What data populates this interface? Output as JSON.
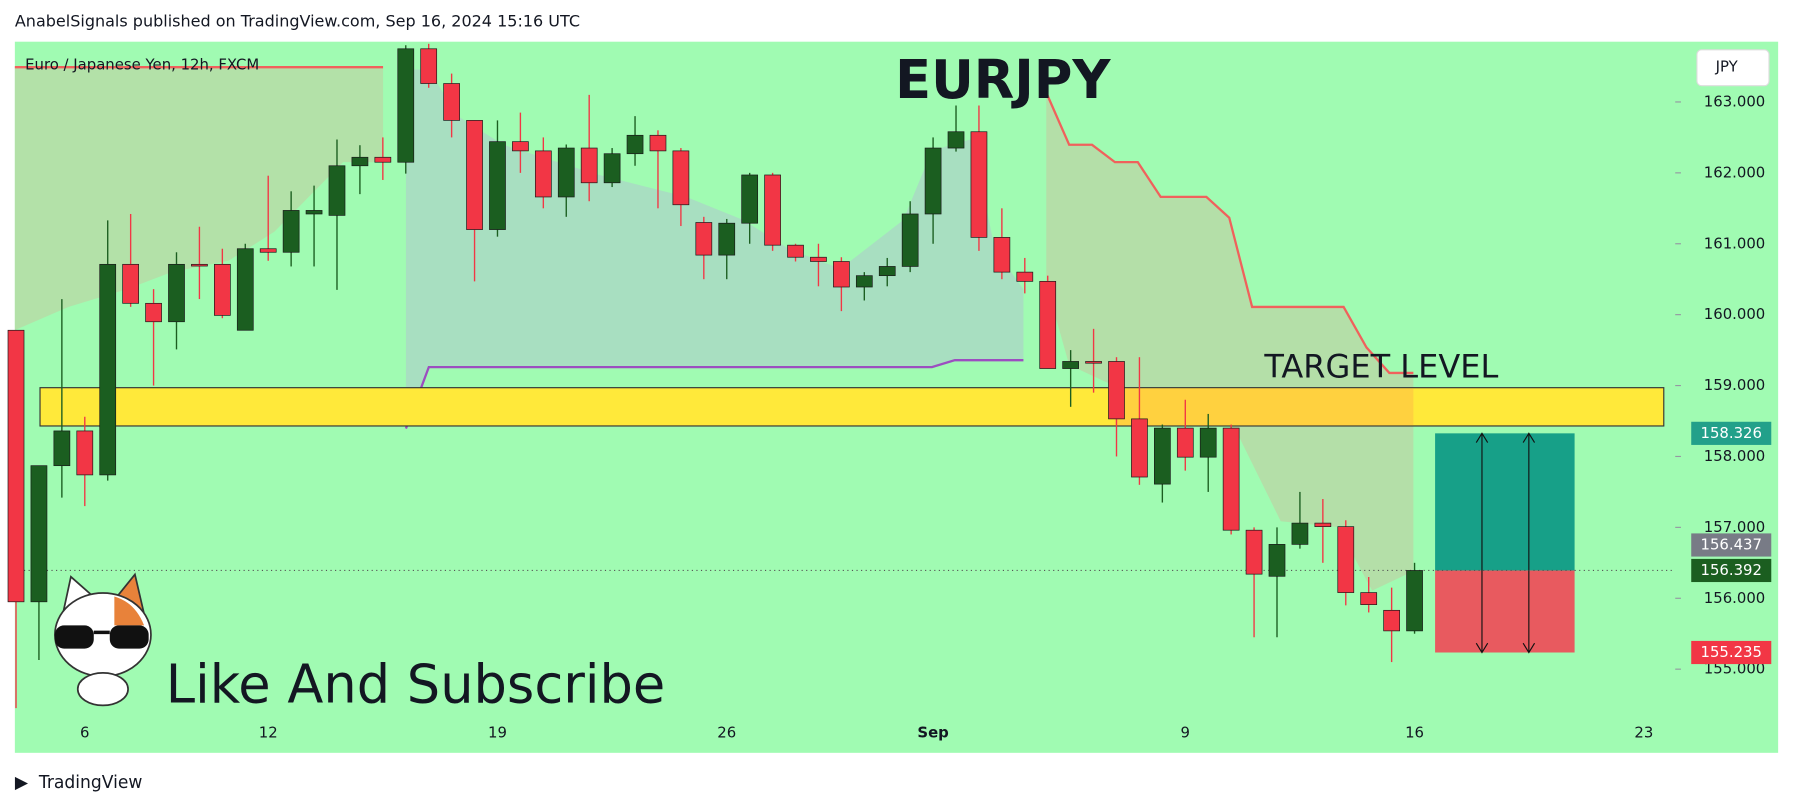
{
  "chart_data": {
    "type": "candlestick",
    "header": "AnabelSignals published on TradingView.com, Sep 16, 2024 15:16 UTC",
    "symbol_label": "Euro / Japanese Yen, 12h, FXCM",
    "title": "EURJPY",
    "currency": "JPY",
    "annotation": "Like And Subscribe",
    "watermark": "TradingView",
    "target_zone": {
      "label": "TARGET LEVEL",
      "range": [
        158.43,
        158.97
      ],
      "color": "#ffe93a"
    },
    "up_color": "#1b5e20",
    "down_color": "#f23645",
    "categories": [
      null,
      null,
      null,
      "6",
      null,
      null,
      null,
      null,
      null,
      null,
      null,
      "12",
      null,
      null,
      null,
      null,
      null,
      null,
      null,
      null,
      null,
      "19",
      null,
      null,
      null,
      null,
      null,
      null,
      null,
      null,
      null,
      "26",
      null,
      null,
      null,
      null,
      null,
      null,
      null,
      null,
      "Sep",
      null,
      null,
      null,
      null,
      null,
      null,
      null,
      null,
      null,
      null,
      "9",
      null,
      null,
      null,
      null,
      null,
      null,
      null,
      null,
      null,
      "16",
      null,
      null,
      null,
      null,
      null,
      null,
      null,
      null,
      null,
      "23"
    ],
    "open": [
      159.78,
      155.95,
      157.87,
      158.36,
      157.74,
      160.71,
      160.16,
      159.9,
      160.71,
      160.71,
      159.78,
      160.93,
      160.88,
      161.42,
      161.4,
      162.1,
      162.22,
      162.15,
      163.75,
      163.26,
      162.74,
      161.2,
      162.44,
      162.31,
      161.66,
      162.35,
      161.86,
      162.27,
      162.53,
      162.31,
      161.3,
      160.84,
      161.29,
      161.97,
      160.98,
      160.81,
      160.75,
      160.39,
      160.55,
      160.68,
      161.42,
      162.35,
      162.58,
      161.09,
      160.6,
      160.47,
      159.24,
      159.34,
      159.34,
      158.53,
      157.61,
      158.4,
      157.99,
      158.4,
      156.96,
      156.31,
      156.76,
      157.06,
      157.01,
      156.08,
      155.83,
      155.54,
      null,
      null,
      null,
      null,
      null,
      null,
      null,
      null,
      null,
      null
    ],
    "high": [
      159.78,
      157.87,
      160.22,
      158.56,
      161.33,
      161.42,
      160.36,
      160.88,
      161.24,
      160.93,
      161.0,
      161.96,
      161.74,
      161.82,
      162.47,
      162.39,
      162.5,
      163.8,
      163.82,
      163.4,
      162.74,
      162.74,
      162.85,
      162.5,
      162.4,
      163.1,
      162.35,
      162.8,
      162.6,
      162.35,
      161.38,
      161.35,
      162.0,
      162.0,
      161.0,
      161.0,
      160.81,
      160.6,
      160.8,
      161.6,
      162.5,
      162.95,
      162.95,
      161.5,
      160.8,
      160.55,
      159.5,
      159.8,
      159.4,
      159.4,
      158.45,
      158.8,
      158.6,
      158.45,
      157.0,
      157.0,
      157.5,
      157.4,
      157.1,
      156.3,
      156.15,
      156.5,
      null,
      null,
      null,
      null,
      null,
      null,
      null,
      null,
      null,
      null
    ],
    "low": [
      154.45,
      155.13,
      157.42,
      157.3,
      157.66,
      160.11,
      159.0,
      159.51,
      160.22,
      159.95,
      159.78,
      160.76,
      160.68,
      160.68,
      160.35,
      161.7,
      161.9,
      161.99,
      163.2,
      162.5,
      160.47,
      161.1,
      162.0,
      161.5,
      161.38,
      161.6,
      161.8,
      162.1,
      161.5,
      161.25,
      160.5,
      160.5,
      161.0,
      160.9,
      160.75,
      160.4,
      160.05,
      160.2,
      160.4,
      160.6,
      161.0,
      162.3,
      160.9,
      160.5,
      160.3,
      159.24,
      158.7,
      158.9,
      158.0,
      157.6,
      157.35,
      157.8,
      157.5,
      156.9,
      155.45,
      155.45,
      156.7,
      156.5,
      155.9,
      155.8,
      155.1,
      155.5,
      null,
      null,
      null,
      null,
      null,
      null,
      null,
      null,
      null,
      null
    ],
    "close": [
      155.95,
      157.87,
      158.36,
      157.74,
      160.71,
      160.16,
      159.9,
      160.71,
      160.7,
      159.99,
      160.93,
      160.88,
      161.47,
      161.47,
      162.1,
      162.22,
      162.15,
      163.75,
      163.26,
      162.74,
      161.2,
      162.44,
      162.31,
      161.66,
      162.35,
      161.86,
      162.27,
      162.53,
      162.31,
      161.55,
      160.84,
      161.29,
      161.97,
      160.98,
      160.81,
      160.75,
      160.39,
      160.55,
      160.68,
      161.42,
      162.35,
      162.58,
      161.09,
      160.6,
      160.47,
      159.24,
      159.34,
      159.32,
      158.53,
      157.71,
      158.4,
      157.99,
      158.4,
      156.96,
      156.34,
      156.76,
      157.06,
      157.01,
      156.08,
      155.91,
      155.54,
      156.392,
      null,
      null,
      null,
      null,
      null,
      null,
      null,
      null,
      null,
      null
    ],
    "ylim": [
      154.31,
      163.85
    ],
    "yticks": [
      {
        "value": 155,
        "label": "155.000"
      },
      {
        "value": 156,
        "label": "156.000"
      },
      {
        "value": 157,
        "label": "157.000"
      },
      {
        "value": 158,
        "label": "158.000"
      },
      {
        "value": 159,
        "label": "159.000"
      },
      {
        "value": 160,
        "label": "160.000"
      },
      {
        "value": 161,
        "label": "161.000"
      },
      {
        "value": 162,
        "label": "162.000"
      },
      {
        "value": 163,
        "label": "163.000"
      }
    ],
    "position": {
      "target": 158.326,
      "entry": 156.392,
      "stop": 155.235,
      "profit_color": "#17a088",
      "loss_color": "#e85a5f"
    },
    "price_labels": [
      {
        "value": 158.326,
        "color": "#22a08a"
      },
      {
        "value": 156.437,
        "color": "#787b86"
      },
      {
        "value": 156.392,
        "color": "#1b5e20"
      },
      {
        "value": 155.235,
        "color": "#f23645"
      }
    ]
  }
}
